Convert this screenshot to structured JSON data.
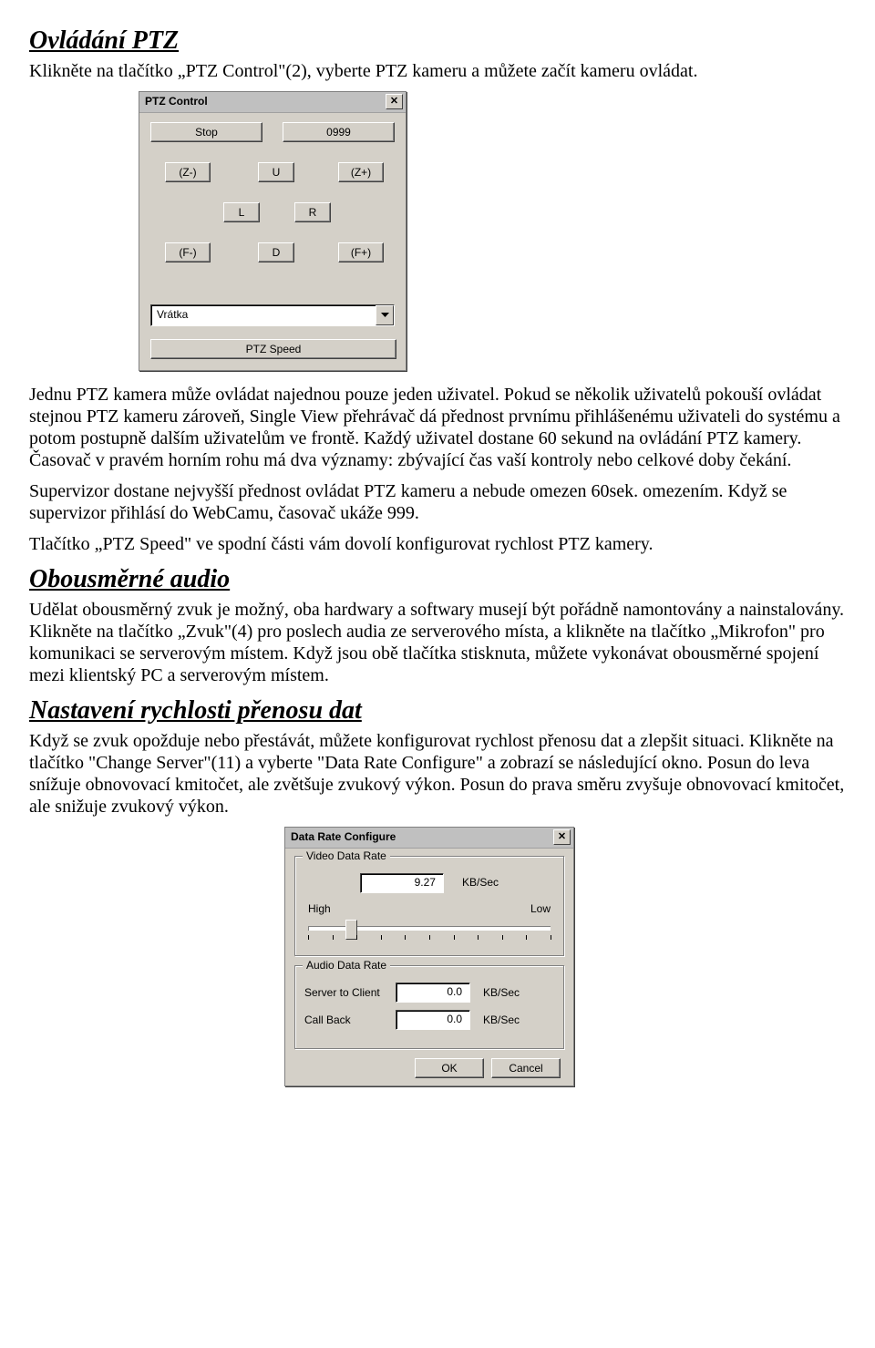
{
  "doc": {
    "h1": "Ovládání PTZ",
    "p1": "Klikněte na tlačítko „PTZ Control\"(2), vyberte PTZ kameru a můžete začít kameru ovládat.",
    "p2": "Jednu PTZ kamera může ovládat najednou pouze jeden uživatel. Pokud se několik uživatelů pokouší ovládat stejnou PTZ kameru zároveň, Single View přehrávač dá přednost prvnímu přihlášenému uživateli do systému a potom postupně dalším uživatelům ve frontě. Každý uživatel dostane 60 sekund na ovládání PTZ kamery. Časovač v pravém horním rohu má dva významy: zbývající čas vaší kontroly nebo celkové doby čekání.",
    "p3": "Supervizor dostane nejvyšší přednost ovládat PTZ kameru a nebude omezen 60sek. omezením. Když se supervizor přihlásí do WebCamu, časovač ukáže 999.",
    "p4": "Tlačítko „PTZ Speed\" ve spodní části vám dovolí konfigurovat rychlost PTZ kamery.",
    "h2": "Obousměrné audio",
    "p5": "Udělat obousměrný zvuk je možný, oba hardwary a softwary musejí být pořádně namontovány a nainstalovány. Klikněte na tlačítko „Zvuk\"(4) pro poslech audia ze serverového místa, a klikněte na tlačítko „Mikrofon\" pro komunikaci se serverovým místem. Když jsou obě tlačítka stisknuta, můžete vykonávat obousměrné spojení mezi klientský PC a serverovým místem.",
    "h3": "Nastavení rychlosti přenosu dat",
    "p6": "Když se zvuk opožduje nebo přestávát, můžete konfigurovat rychlost přenosu dat a zlepšit situaci. Klikněte na tlačítko \"Change Server\"(11) a vyberte \"Data Rate Configure\" a zobrazí se následující okno. Posun do leva snížuje obnovovací kmitočet, ale zvětšuje zvukový výkon. Posun do prava směru zvyšuje obnovovací kmitočet, ale snižuje zvukový výkon."
  },
  "ptz": {
    "title": "PTZ Control",
    "stop": "Stop",
    "timer": "0999",
    "zminus": "(Z-)",
    "zplus": "(Z+)",
    "u": "U",
    "l": "L",
    "r": "R",
    "d": "D",
    "fminus": "(F-)",
    "fplus": "(F+)",
    "preset": "Vrátka",
    "speed": "PTZ Speed",
    "colors": {
      "panel": "#d4d0c8",
      "titlebar": "#c0c0c0"
    }
  },
  "drc": {
    "title": "Data Rate Configure",
    "video_legend": "Video Data Rate",
    "video_value": "9.27",
    "kbsec": "KB/Sec",
    "high": "High",
    "low": "Low",
    "slider": {
      "min": 0,
      "max": 100,
      "value": 16,
      "ticks": 11
    },
    "audio_legend": "Audio Data Rate",
    "server_to_client_label": "Server to Client",
    "server_to_client_value": "0.0",
    "call_back_label": "Call Back",
    "call_back_value": "0.0",
    "ok": "OK",
    "cancel": "Cancel"
  }
}
